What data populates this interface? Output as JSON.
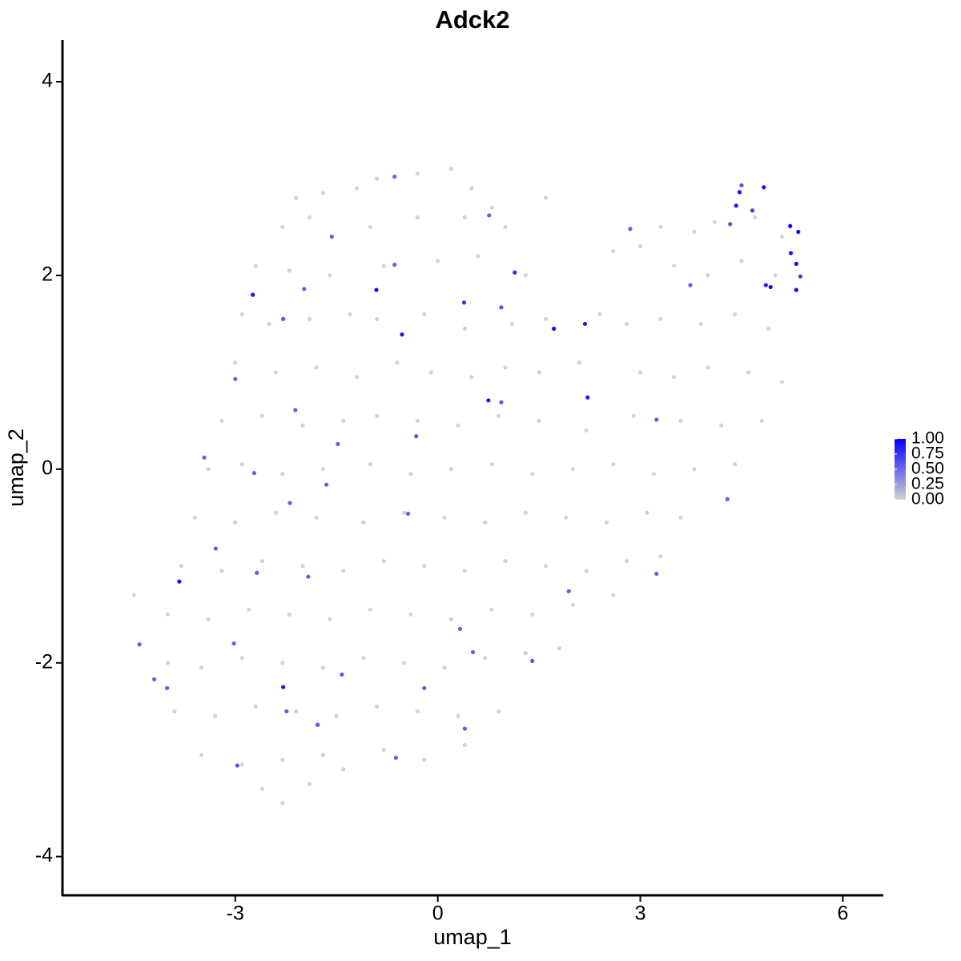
{
  "chart_data": {
    "type": "scatter",
    "title": "Adck2",
    "x_label": "umap_1",
    "y_label": "umap_2",
    "xlim": [
      -5.56,
      6.6
    ],
    "ylim": [
      -4.4,
      4.43
    ],
    "xticks": [
      -3,
      0,
      3,
      6
    ],
    "yticks": [
      -4,
      -2,
      0,
      2,
      4
    ],
    "low_color": "#d3d3d3",
    "high_color": "#0000ff",
    "color_lim": [
      0,
      1
    ],
    "color_ticks": [
      {
        "value": 0,
        "label": "0.00"
      },
      {
        "value": 0.25,
        "label": "0.25"
      },
      {
        "value": 0.5,
        "label": "0.50"
      },
      {
        "value": 0.75,
        "label": "0.75"
      },
      {
        "value": 1,
        "label": "1.00"
      }
    ],
    "series": [
      {
        "name": "Adck2",
        "x": [
          -0.9,
          -0.3,
          0.2,
          0.5,
          -1.7,
          -2.1,
          -1.2,
          1.6,
          0.8,
          -2.3,
          -1.9,
          -1.0,
          -0.3,
          0.4,
          1.0,
          3.3,
          3.8,
          4.1,
          4.7,
          5.1,
          -2.7,
          -2.2,
          -1.6,
          -0.8,
          0.0,
          0.6,
          1.3,
          2.6,
          3.0,
          3.5,
          4.0,
          4.5,
          5.0,
          -2.9,
          -2.5,
          -1.9,
          -1.3,
          -0.9,
          -0.2,
          0.4,
          1.1,
          1.6,
          2.4,
          2.8,
          3.3,
          3.9,
          4.4,
          4.9,
          -3.0,
          -2.4,
          -1.8,
          -1.2,
          -0.6,
          -0.1,
          0.5,
          1.0,
          1.5,
          2.1,
          3.0,
          3.5,
          4.0,
          4.6,
          5.1,
          -3.2,
          -2.6,
          -2.0,
          -1.4,
          -0.9,
          -0.3,
          0.3,
          0.9,
          1.5,
          2.2,
          2.9,
          3.6,
          4.2,
          4.8,
          -3.4,
          -2.9,
          -2.3,
          -1.7,
          -1.0,
          -0.4,
          0.2,
          0.8,
          1.4,
          2.0,
          2.6,
          3.2,
          3.8,
          4.4,
          -3.6,
          -3.0,
          -2.4,
          -1.8,
          -1.1,
          -0.5,
          0.1,
          0.7,
          1.3,
          1.9,
          2.5,
          3.1,
          3.6,
          -3.8,
          -3.2,
          -2.6,
          -2.0,
          -1.4,
          -0.8,
          -0.2,
          0.4,
          1.0,
          1.6,
          2.2,
          2.8,
          3.3,
          -4.5,
          -4.0,
          -3.4,
          -2.8,
          -2.2,
          -1.6,
          -1.0,
          -0.4,
          0.2,
          0.8,
          1.4,
          2.0,
          2.6,
          -4.0,
          -3.5,
          -2.9,
          -2.3,
          -1.7,
          -1.1,
          -0.5,
          0.1,
          0.7,
          1.3,
          1.8,
          -3.9,
          -3.3,
          -2.7,
          -2.1,
          -1.5,
          -0.9,
          -0.3,
          0.3,
          0.9,
          -3.5,
          -2.9,
          -2.3,
          -1.7,
          -1.4,
          -0.8,
          -0.2,
          0.4,
          -2.6,
          -2.3,
          -1.9,
          -3.83,
          -2.74,
          -0.91,
          -0.53,
          1.72,
          2.18,
          0.75,
          2.22,
          -2.29,
          4.42,
          4.47,
          4.83,
          4.66,
          5.22,
          5.34,
          5.23,
          5.31,
          5.31,
          4.93,
          4.86,
          5.37,
          4.5,
          4.33,
          1.14,
          0.39,
          -4.42,
          -4.2,
          -4.01,
          -3.29,
          -3.46,
          -2.97,
          -2.68,
          -2.24,
          -1.78,
          -3.02,
          -3.0,
          -2.72,
          -1.65,
          -1.48,
          -0.32,
          -0.44,
          -0.62,
          0.4,
          0.33,
          1.4,
          1.94,
          3.24,
          3.24,
          4.29,
          3.74,
          2.85,
          0.94,
          -0.64,
          -1.57,
          -0.64,
          -1.98,
          -2.29,
          0.76,
          -2.19,
          -1.92,
          -1.42,
          -0.2,
          0.52,
          -2.11,
          0.94
        ],
        "y": [
          3.0,
          3.05,
          3.1,
          2.9,
          2.85,
          2.8,
          2.9,
          2.8,
          2.7,
          2.5,
          2.6,
          2.5,
          2.6,
          2.6,
          2.5,
          2.5,
          2.45,
          2.55,
          2.6,
          2.4,
          2.1,
          2.05,
          2.0,
          2.1,
          2.15,
          2.2,
          2.0,
          2.25,
          2.3,
          2.1,
          2.0,
          2.15,
          2.0,
          1.6,
          1.5,
          1.55,
          1.6,
          1.55,
          1.6,
          1.45,
          1.5,
          1.55,
          1.6,
          1.5,
          1.55,
          1.5,
          1.6,
          1.45,
          1.1,
          1.0,
          1.05,
          0.95,
          1.1,
          1.0,
          0.95,
          1.05,
          1.0,
          1.1,
          1.0,
          0.95,
          1.05,
          1.0,
          0.9,
          0.5,
          0.55,
          0.45,
          0.5,
          0.55,
          0.5,
          0.45,
          0.55,
          0.5,
          0.4,
          0.55,
          0.5,
          0.45,
          0.5,
          0.0,
          0.05,
          -0.05,
          0.0,
          0.05,
          -0.05,
          0.0,
          0.05,
          -0.05,
          0.0,
          0.05,
          -0.05,
          0.0,
          0.05,
          -0.5,
          -0.55,
          -0.45,
          -0.5,
          -0.55,
          -0.45,
          -0.5,
          -0.55,
          -0.45,
          -0.5,
          -0.55,
          -0.45,
          -0.5,
          -1.0,
          -1.05,
          -0.95,
          -1.0,
          -1.05,
          -0.95,
          -1.0,
          -1.05,
          -0.95,
          -1.0,
          -1.05,
          -0.95,
          -0.9,
          -1.3,
          -1.5,
          -1.55,
          -1.45,
          -1.5,
          -1.55,
          -1.45,
          -1.5,
          -1.55,
          -1.45,
          -1.5,
          -1.4,
          -1.3,
          -2.0,
          -2.05,
          -1.95,
          -2.0,
          -2.05,
          -1.95,
          -2.0,
          -2.05,
          -1.95,
          -1.9,
          -1.85,
          -2.5,
          -2.55,
          -2.45,
          -2.5,
          -2.55,
          -2.45,
          -2.5,
          -2.55,
          -2.5,
          -2.95,
          -3.05,
          -3.0,
          -2.95,
          -3.1,
          -2.9,
          -3.0,
          -2.85,
          -3.3,
          -3.45,
          -3.25,
          -1.16,
          1.8,
          1.85,
          1.39,
          1.45,
          1.5,
          0.71,
          0.74,
          -2.25,
          2.72,
          2.86,
          2.91,
          2.67,
          2.51,
          2.45,
          2.23,
          2.12,
          1.85,
          1.88,
          1.9,
          1.99,
          2.93,
          2.53,
          2.03,
          1.72,
          -1.81,
          -2.17,
          -2.26,
          -0.82,
          0.12,
          -3.06,
          -1.07,
          -2.5,
          -2.64,
          -1.8,
          0.93,
          -0.04,
          -0.16,
          0.26,
          0.34,
          -0.46,
          -2.98,
          -2.68,
          -1.65,
          -1.98,
          -1.26,
          0.51,
          -1.08,
          -0.31,
          1.9,
          2.48,
          1.67,
          2.11,
          2.4,
          3.02,
          1.86,
          1.55,
          2.62,
          -0.35,
          -1.11,
          -2.12,
          -2.26,
          -1.89,
          0.61,
          0.69
        ],
        "values": [
          0,
          0,
          0,
          0,
          0,
          0,
          0,
          0,
          0,
          0,
          0,
          0,
          0,
          0,
          0,
          0,
          0,
          0,
          0,
          0,
          0,
          0,
          0,
          0,
          0,
          0,
          0,
          0,
          0,
          0,
          0,
          0,
          0,
          0,
          0,
          0,
          0,
          0,
          0,
          0,
          0,
          0,
          0,
          0,
          0,
          0,
          0,
          0,
          0,
          0,
          0,
          0,
          0,
          0,
          0,
          0,
          0,
          0,
          0,
          0,
          0,
          0,
          0,
          0,
          0,
          0,
          0,
          0,
          0,
          0,
          0,
          0,
          0,
          0,
          0,
          0,
          0,
          0,
          0,
          0,
          0,
          0,
          0,
          0,
          0,
          0,
          0,
          0,
          0,
          0,
          0,
          0,
          0,
          0,
          0,
          0,
          0,
          0,
          0,
          0,
          0,
          0,
          0,
          0,
          0,
          0,
          0,
          0,
          0,
          0,
          0,
          0,
          0,
          0,
          0,
          0,
          0,
          0,
          0,
          0,
          0,
          0,
          0,
          0,
          0,
          0,
          0,
          0,
          0,
          0,
          0,
          0,
          0,
          0,
          0,
          0,
          0,
          0,
          0,
          0,
          0,
          0,
          0,
          0,
          0,
          0,
          0,
          0,
          0,
          0,
          0,
          0,
          0,
          0,
          0,
          0,
          0,
          0,
          0,
          0,
          0,
          0.95,
          0.9,
          0.95,
          0.9,
          0.95,
          0.85,
          0.9,
          0.9,
          0.9,
          0.9,
          0.95,
          0.9,
          0.7,
          0.95,
          0.95,
          0.9,
          0.95,
          0.95,
          0.95,
          0.85,
          0.7,
          0.6,
          0.6,
          0.8,
          0.75,
          0.55,
          0.55,
          0.55,
          0.55,
          0.55,
          0.6,
          0.55,
          0.55,
          0.6,
          0.55,
          0.55,
          0.55,
          0.55,
          0.55,
          0.6,
          0.55,
          0.55,
          0.55,
          0.55,
          0.6,
          0.55,
          0.55,
          0.55,
          0.55,
          0.55,
          0.55,
          0.6,
          0.55,
          0.55,
          0.55,
          0.55,
          0.6,
          0.55,
          0.55,
          0.55,
          0.55,
          0.55,
          0.55,
          0.55,
          0.55
        ]
      }
    ]
  }
}
